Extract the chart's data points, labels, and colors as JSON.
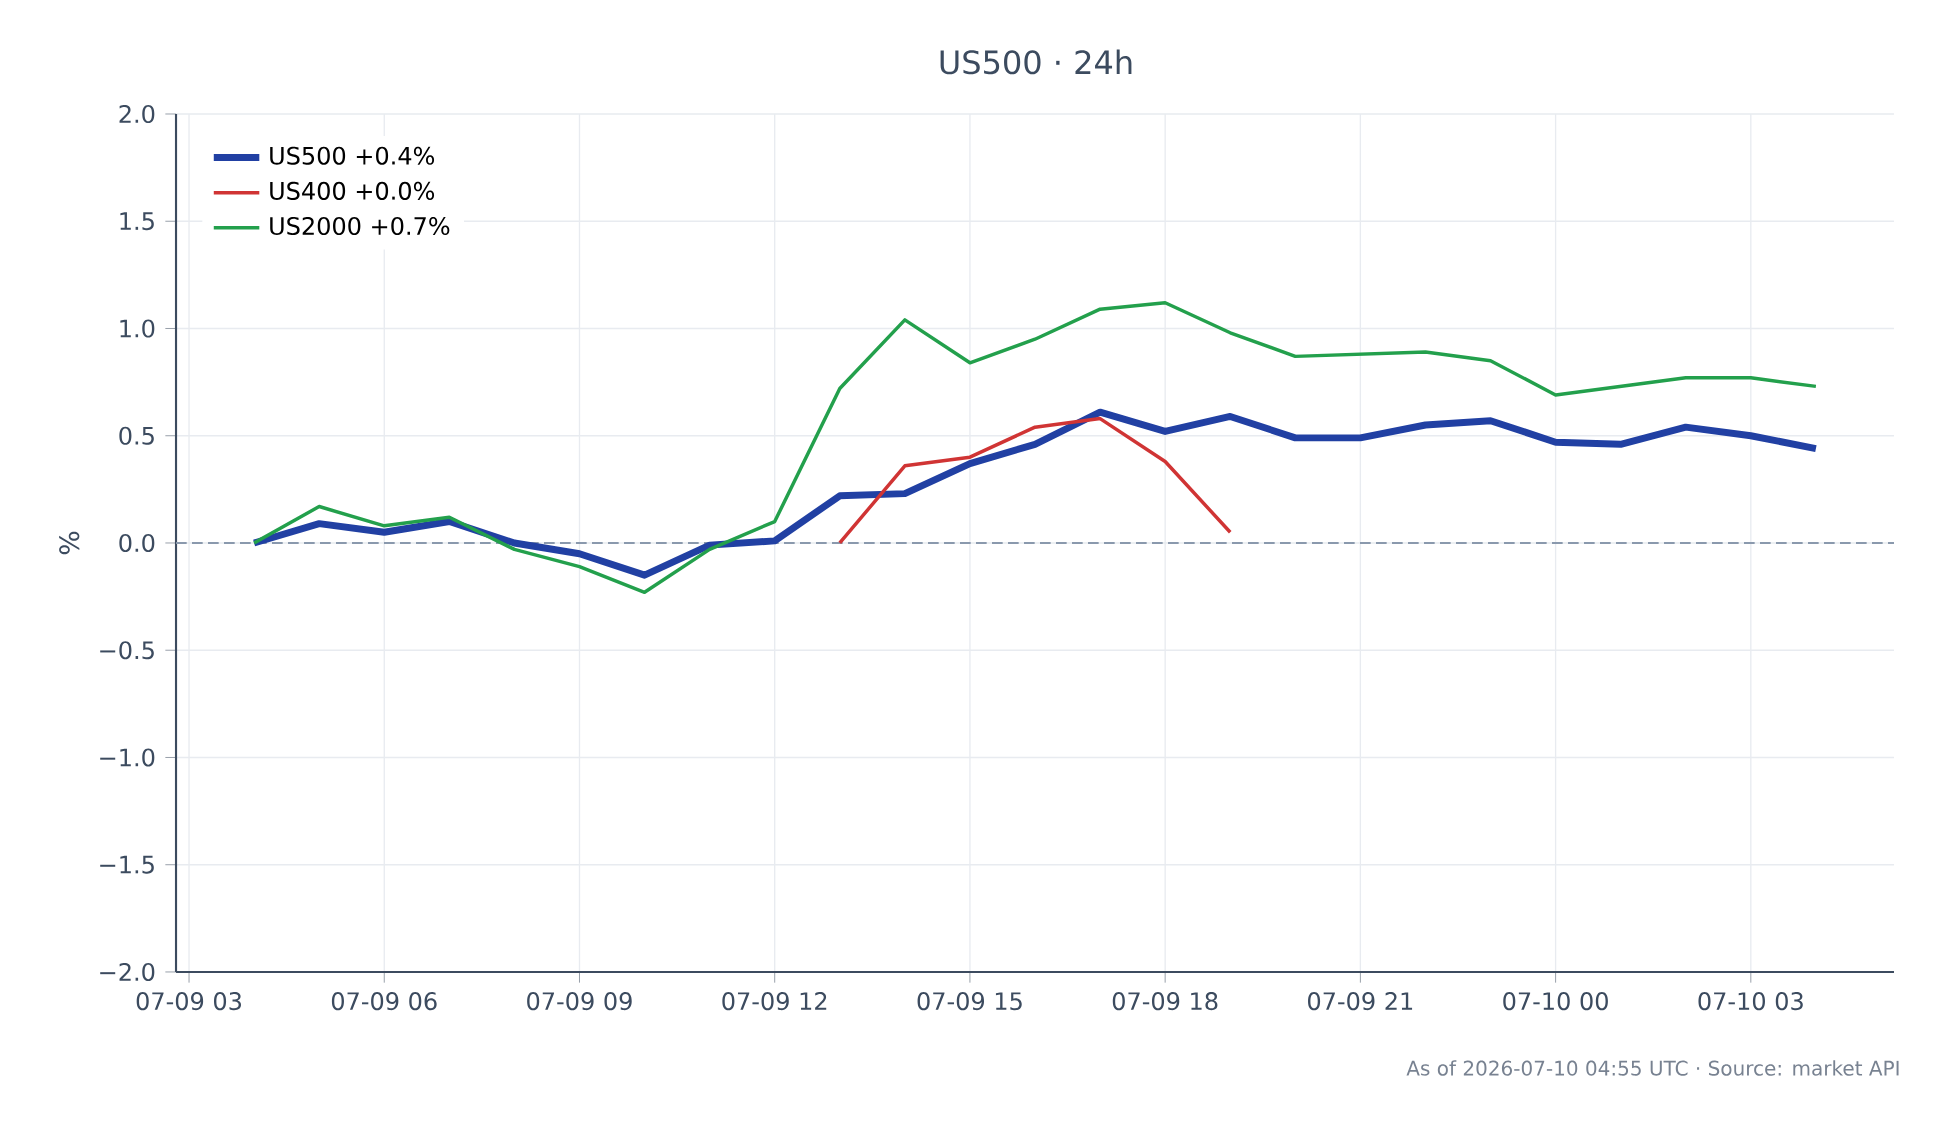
{
  "chart_data": {
    "type": "line",
    "title": "US500 · 24h",
    "ylabel": "%",
    "annotations": [
      "As of 2026-07-10 04:55 UTC · Source: market API"
    ],
    "xlim": [
      "2026-07-09T02:48",
      "2026-07-10T05:12"
    ],
    "xticks": [
      {
        "value": "2026-07-09T03:00",
        "label": "07-09 03"
      },
      {
        "value": "2026-07-09T06:00",
        "label": "07-09 06"
      },
      {
        "value": "2026-07-09T09:00",
        "label": "07-09 09"
      },
      {
        "value": "2026-07-09T12:00",
        "label": "07-09 12"
      },
      {
        "value": "2026-07-09T15:00",
        "label": "07-09 15"
      },
      {
        "value": "2026-07-09T18:00",
        "label": "07-09 18"
      },
      {
        "value": "2026-07-09T21:00",
        "label": "07-09 21"
      },
      {
        "value": "2026-07-10T00:00",
        "label": "07-10 00"
      },
      {
        "value": "2026-07-10T03:00",
        "label": "07-10 03"
      }
    ],
    "ylim": [
      -2,
      2
    ],
    "yticks": [
      {
        "value": -2,
        "label": "−2.0"
      },
      {
        "value": -1.5,
        "label": "−1.5"
      },
      {
        "value": -1,
        "label": "−1.0"
      },
      {
        "value": -0.5,
        "label": "−0.5"
      },
      {
        "value": 0,
        "label": "0.0"
      },
      {
        "value": 0.5,
        "label": "0.5"
      },
      {
        "value": 1,
        "label": "1.0"
      },
      {
        "value": 1.5,
        "label": "1.5"
      },
      {
        "value": 2,
        "label": "2.0"
      }
    ],
    "series": [
      {
        "name": "US500 +0.4%",
        "color": "#2140a3",
        "x": [
          "2026-07-09T04:00",
          "2026-07-09T05:00",
          "2026-07-09T06:00",
          "2026-07-09T07:00",
          "2026-07-09T08:00",
          "2026-07-09T09:00",
          "2026-07-09T10:00",
          "2026-07-09T11:00",
          "2026-07-09T12:00",
          "2026-07-09T13:00",
          "2026-07-09T14:00",
          "2026-07-09T15:00",
          "2026-07-09T16:00",
          "2026-07-09T17:00",
          "2026-07-09T18:00",
          "2026-07-09T19:00",
          "2026-07-09T20:00",
          "2026-07-09T21:00",
          "2026-07-09T22:00",
          "2026-07-09T23:00",
          "2026-07-10T00:00",
          "2026-07-10T01:00",
          "2026-07-10T02:00",
          "2026-07-10T03:00",
          "2026-07-10T04:00"
        ],
        "values": [
          0.0,
          0.09,
          0.05,
          0.1,
          0.0,
          -0.05,
          -0.15,
          -0.01,
          0.01,
          0.22,
          0.23,
          0.37,
          0.46,
          0.61,
          0.52,
          0.59,
          0.49,
          0.49,
          0.55,
          0.57,
          0.47,
          0.46,
          0.54,
          0.5,
          0.44
        ]
      },
      {
        "name": "US400 +0.0%",
        "color": "#d03434",
        "x": [
          "2026-07-09T13:00",
          "2026-07-09T14:00",
          "2026-07-09T15:00",
          "2026-07-09T16:00",
          "2026-07-09T17:00",
          "2026-07-09T18:00",
          "2026-07-09T19:00"
        ],
        "values": [
          0.0,
          0.36,
          0.4,
          0.54,
          0.58,
          0.38,
          0.05
        ]
      },
      {
        "name": "US2000 +0.7%",
        "color": "#23a04c",
        "x": [
          "2026-07-09T04:00",
          "2026-07-09T05:00",
          "2026-07-09T06:00",
          "2026-07-09T07:00",
          "2026-07-09T08:00",
          "2026-07-09T09:00",
          "2026-07-09T10:00",
          "2026-07-09T11:00",
          "2026-07-09T12:00",
          "2026-07-09T13:00",
          "2026-07-09T14:00",
          "2026-07-09T15:00",
          "2026-07-09T16:00",
          "2026-07-09T17:00",
          "2026-07-09T18:00",
          "2026-07-09T19:00",
          "2026-07-09T20:00",
          "2026-07-09T21:00",
          "2026-07-09T22:00",
          "2026-07-09T23:00",
          "2026-07-10T00:00",
          "2026-07-10T01:00",
          "2026-07-10T02:00",
          "2026-07-10T03:00",
          "2026-07-10T04:00"
        ],
        "values": [
          0.0,
          0.17,
          0.08,
          0.12,
          -0.03,
          -0.11,
          -0.23,
          -0.03,
          0.1,
          0.72,
          1.04,
          0.84,
          0.95,
          1.09,
          1.12,
          0.98,
          0.87,
          0.88,
          0.89,
          0.85,
          0.69,
          0.73,
          0.77,
          0.77,
          0.73
        ]
      }
    ],
    "ref_lines": [
      {
        "axis": "y",
        "value": 0,
        "color": "#8a99ad",
        "line_style": "dashed"
      }
    ],
    "grid": true,
    "legend": "top left",
    "line_style": "solid",
    "marker": "none"
  }
}
